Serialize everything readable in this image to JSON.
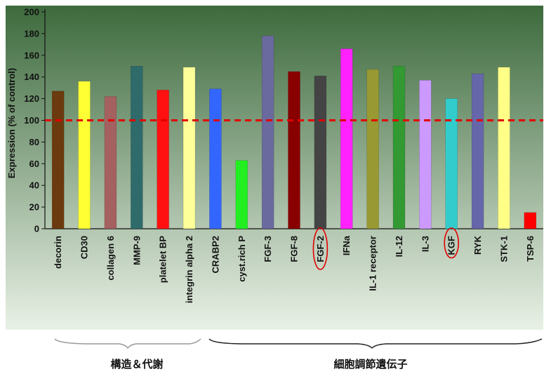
{
  "chart_data": {
    "type": "bar",
    "title": "",
    "xlabel": "",
    "ylabel": "Expression (% of control)",
    "ylim": [
      0,
      200
    ],
    "yticks": [
      0,
      20,
      40,
      60,
      80,
      100,
      120,
      140,
      160,
      180,
      200
    ],
    "grid": false,
    "legend": "none",
    "categories": [
      "decorin",
      "CD30",
      "collagen 6",
      "MMP-9",
      "platelet BP",
      "integrin alpha 2",
      "CRABP2",
      "cyst.rich P",
      "FGF-3",
      "FGF-8",
      "FGF-2",
      "IFNa",
      "IL-1 receptor",
      "IL-12",
      "IL-3",
      "KGF",
      "RYK",
      "STK-1",
      "TSP-6"
    ],
    "values": [
      127,
      136,
      122,
      150,
      128,
      149,
      129,
      63,
      178,
      145,
      141,
      166,
      147,
      150,
      137,
      120,
      143,
      149,
      15
    ],
    "bar_colors": [
      "#6b3a0e",
      "#ffff33",
      "#a56060",
      "#2f6b6b",
      "#ff1111",
      "#ffff99",
      "#3366ff",
      "#22ee22",
      "#6a6a9e",
      "#880000",
      "#444444",
      "#ff22ff",
      "#999933",
      "#339933",
      "#cc99ff",
      "#33cccc",
      "#6666aa",
      "#ffff88",
      "#ff0000"
    ],
    "reference_line": {
      "value": 100,
      "color": "#e00000",
      "style": "dashed"
    },
    "highlighted_categories": [
      "FGF-2",
      "KGF"
    ],
    "highlight_color": "#e00000",
    "background": {
      "top": "#3d6a3d",
      "bottom": "#e9f1e6"
    }
  },
  "groups": [
    {
      "label": "構造＆代謝"
    },
    {
      "label": "細胞調節遺伝子"
    }
  ]
}
